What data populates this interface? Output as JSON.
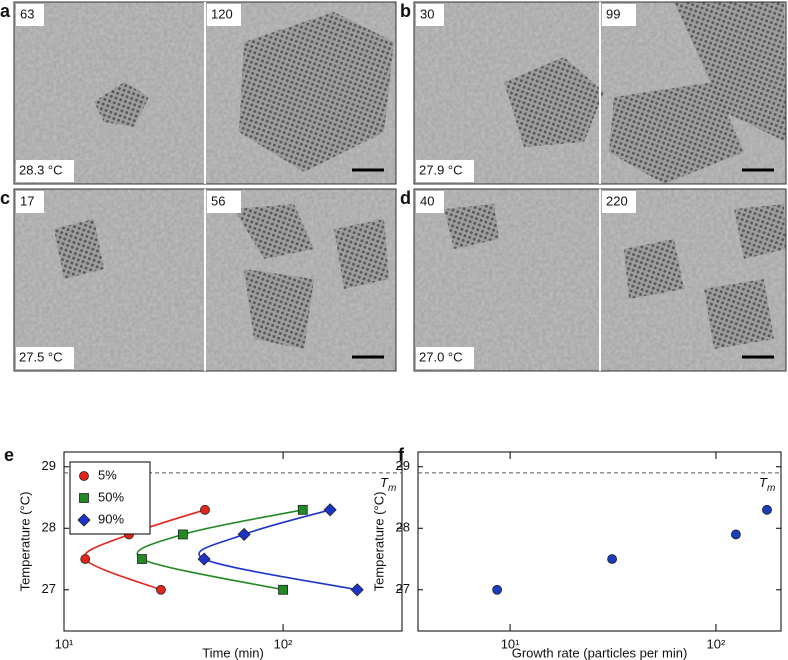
{
  "panels": [
    {
      "letter": "a",
      "times": [
        "63",
        "120"
      ],
      "temperature": "28.3 °C"
    },
    {
      "letter": "b",
      "times": [
        "30",
        "99"
      ],
      "temperature": "27.9 °C"
    },
    {
      "letter": "c",
      "times": [
        "17",
        "56"
      ],
      "temperature": "27.5 °C"
    },
    {
      "letter": "d",
      "times": [
        "40",
        "220"
      ],
      "temperature": "27.0 °C"
    }
  ],
  "chart_data": [
    {
      "type": "scatter",
      "panel_label": "e",
      "xlabel": "Time (min)",
      "ylabel": "Temperature (°C)",
      "log_x": true,
      "xlim": [
        10,
        349
      ],
      "ylim": [
        26.33,
        29.24
      ],
      "xticks": [
        {
          "value": 10,
          "label": "10¹"
        },
        {
          "value": 100,
          "label": "10²"
        }
      ],
      "yticks": [
        27,
        28,
        29
      ],
      "reference_line": {
        "value": 28.9,
        "label": "T",
        "subscript": "m"
      },
      "fit_curves": true,
      "legend": "upper left",
      "series": [
        {
          "name": "5%",
          "color": "#e3261c",
          "marker": "circle",
          "x": [
            27.7,
            12.5,
            19.8,
            44
          ],
          "values": [
            27.0,
            27.5,
            27.9,
            28.3
          ]
        },
        {
          "name": "50%",
          "color": "#238a23",
          "marker": "square",
          "x": [
            100,
            22.7,
            34.9,
            123
          ],
          "values": [
            27.0,
            27.5,
            27.9,
            28.3
          ]
        },
        {
          "name": "90%",
          "color": "#1c35c8",
          "marker": "diamond",
          "x": [
            218,
            43.6,
            66.4,
            164
          ],
          "values": [
            27.0,
            27.5,
            27.9,
            28.3
          ]
        }
      ]
    },
    {
      "type": "scatter",
      "panel_label": "f",
      "xlabel": "Growth rate (particles per min)",
      "ylabel": "Temperature (°C)",
      "log_x": true,
      "xlim": [
        3.57,
        207
      ],
      "ylim": [
        26.33,
        29.24
      ],
      "xticks": [
        {
          "value": 10,
          "label": "10¹"
        },
        {
          "value": 100,
          "label": "10²"
        }
      ],
      "yticks": [
        27,
        28,
        29
      ],
      "reference_line": {
        "value": 28.9,
        "label": "T",
        "subscript": "m"
      },
      "fit_curves": false,
      "series": [
        {
          "color": "#1a3cbf",
          "marker": "circle",
          "x": [
            8.65,
            31.3,
            125,
            177
          ],
          "values": [
            27.0,
            27.5,
            27.9,
            28.3
          ]
        }
      ]
    }
  ]
}
